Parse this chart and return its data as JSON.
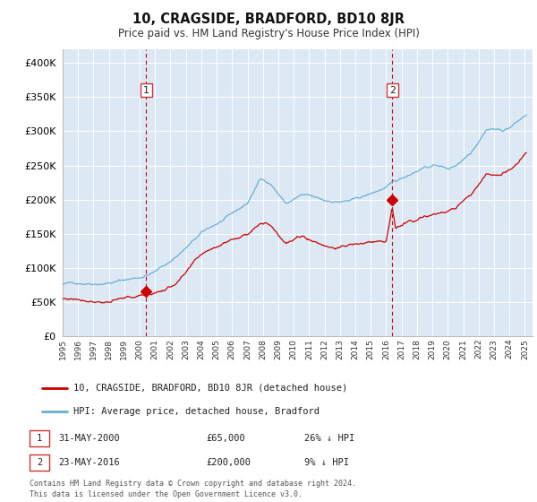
{
  "title": "10, CRAGSIDE, BRADFORD, BD10 8JR",
  "subtitle": "Price paid vs. HM Land Registry's House Price Index (HPI)",
  "legend_line1": "10, CRAGSIDE, BRADFORD, BD10 8JR (detached house)",
  "legend_line2": "HPI: Average price, detached house, Bradford",
  "annotation1_label": "1",
  "annotation1_date": "31-MAY-2000",
  "annotation1_price": "£65,000",
  "annotation1_hpi": "26% ↓ HPI",
  "annotation1_year": 2000.42,
  "annotation1_value": 65000,
  "annotation2_label": "2",
  "annotation2_date": "23-MAY-2016",
  "annotation2_price": "£200,000",
  "annotation2_hpi": "9% ↓ HPI",
  "annotation2_year": 2016.39,
  "annotation2_value": 200000,
  "ylim": [
    0,
    420000
  ],
  "xlim_start": 1995.0,
  "xlim_end": 2025.5,
  "plot_bg_color": "#dce9f5",
  "hpi_line_color": "#6baed6",
  "price_line_color": "#cc0000",
  "footer_text1": "Contains HM Land Registry data © Crown copyright and database right 2024.",
  "footer_text2": "This data is licensed under the Open Government Licence v3.0.",
  "ytick_values": [
    0,
    50000,
    100000,
    150000,
    200000,
    250000,
    300000,
    350000,
    400000
  ],
  "xtick_years": [
    1995,
    1996,
    1997,
    1998,
    1999,
    2000,
    2001,
    2002,
    2003,
    2004,
    2005,
    2006,
    2007,
    2008,
    2009,
    2010,
    2011,
    2012,
    2013,
    2014,
    2015,
    2016,
    2017,
    2018,
    2019,
    2020,
    2021,
    2022,
    2023,
    2024,
    2025
  ]
}
